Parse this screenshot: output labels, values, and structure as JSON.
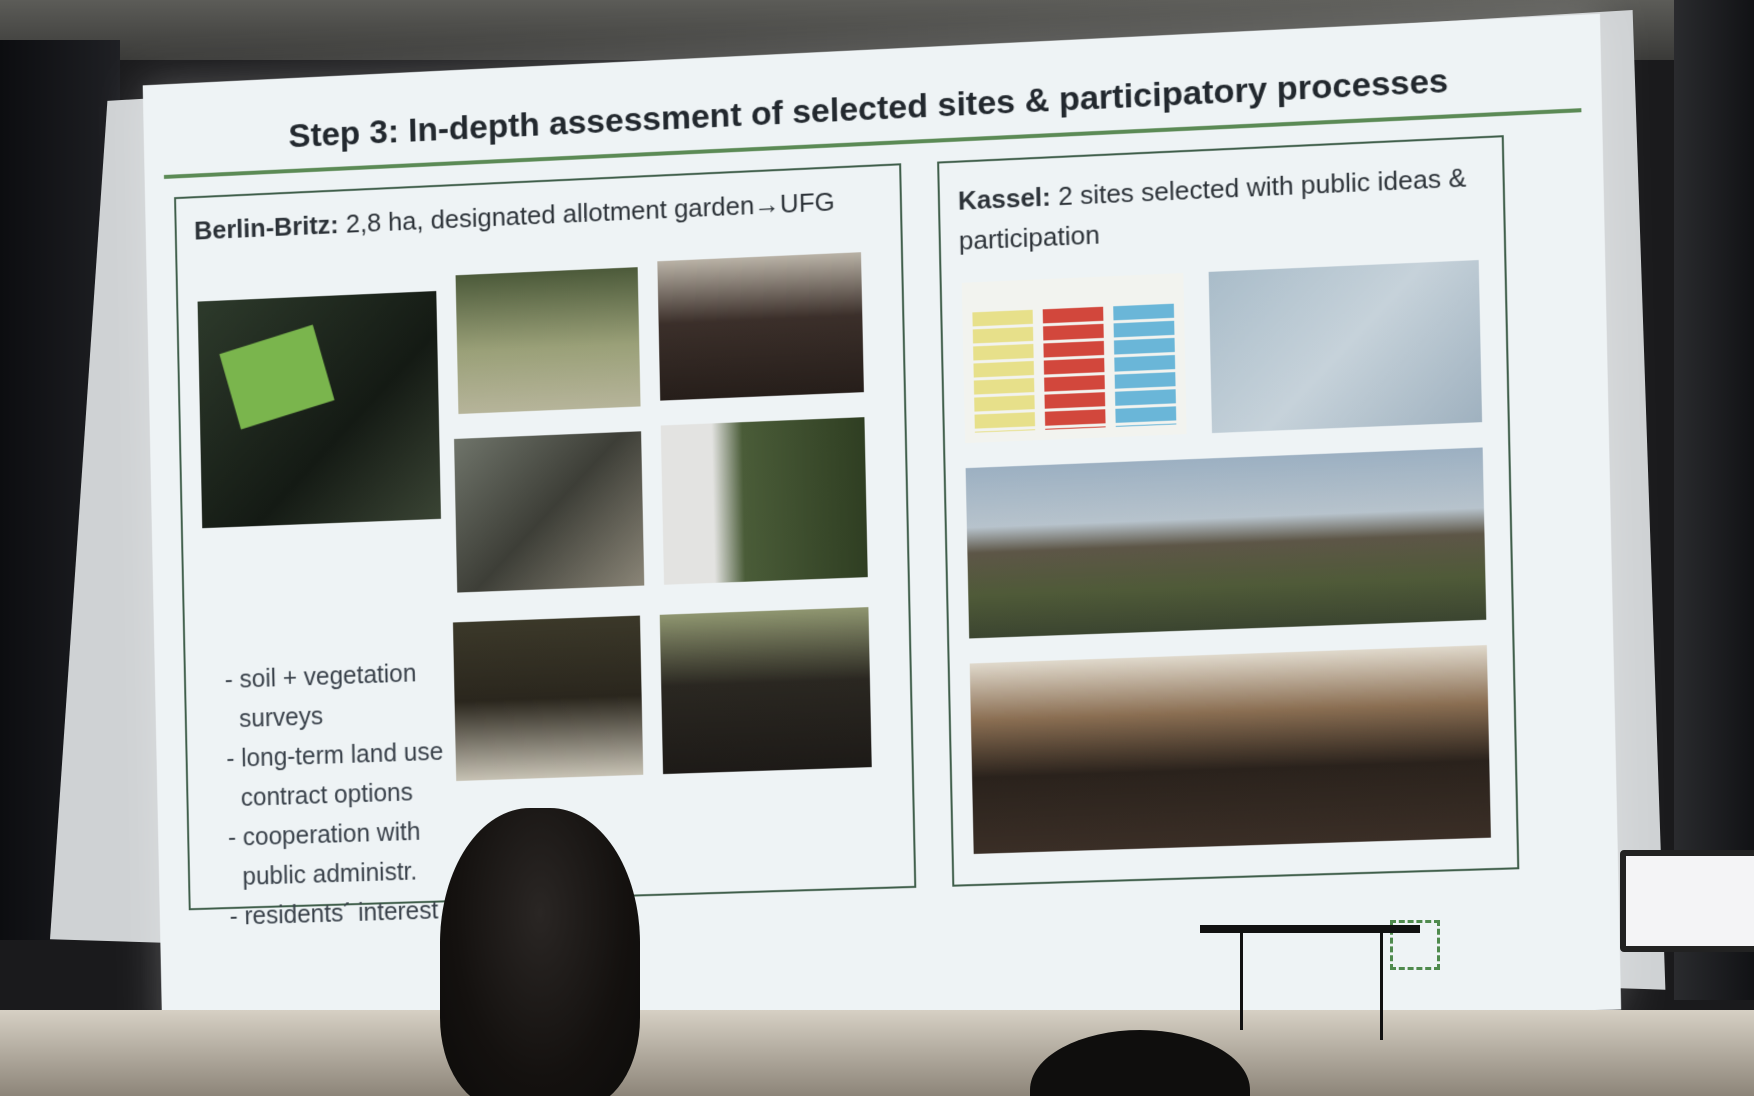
{
  "slide": {
    "title": "Step 3: In-depth assessment of selected sites & participatory processes",
    "left_panel": {
      "heading_bold": "Berlin-Britz:",
      "heading_rest": " 2,8 ha, designated allotment garden→UFG",
      "bullets": [
        "- soil + vegetation surveys",
        "- long-term land use contract options",
        "- cooperation with public administr.",
        "- residents´ interest"
      ]
    },
    "right_panel": {
      "heading_bold": "Kassel:",
      "heading_rest": " 2 sites selected with public ideas & participation"
    },
    "colors": {
      "accent_green": "#5b8a55",
      "border": "#3f5e4a",
      "note_yellow": "#e7e08a",
      "note_red": "#d2473c",
      "note_blue": "#6ab6d8"
    }
  }
}
